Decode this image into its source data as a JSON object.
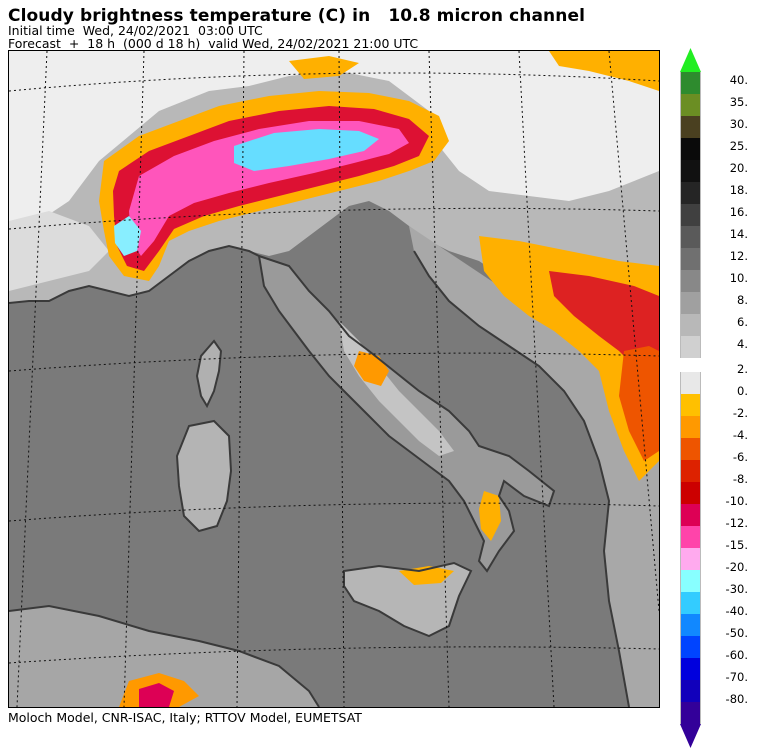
{
  "header": {
    "title": "Cloudy brightness temperature (C) in   10.8 micron channel",
    "line1": "Initial time  Wed, 24/02/2021  03:00 UTC",
    "line2": "Forecast  +  18 h  (000 d 18 h)  valid Wed, 24/02/2021 21:00 UTC"
  },
  "footer": {
    "credit": "Moloch Model, CNR-ISAC, Italy; RTTOV Model, EUMETSAT"
  },
  "legend": {
    "arrow_top_color": "#22ee22",
    "arrow_bottom_color": "#330099",
    "upper_scale": [
      {
        "label": "40.",
        "color": "#2e8b2e"
      },
      {
        "label": "35.",
        "color": "#6b8e23"
      },
      {
        "label": "30.",
        "color": "#4a4020"
      },
      {
        "label": "25.",
        "color": "#0a0a0a"
      },
      {
        "label": "20.",
        "color": "#111111"
      },
      {
        "label": "18.",
        "color": "#252525"
      },
      {
        "label": "16.",
        "color": "#404040"
      },
      {
        "label": "14.",
        "color": "#5a5a5a"
      },
      {
        "label": "12.",
        "color": "#707070"
      },
      {
        "label": "10.",
        "color": "#888888"
      },
      {
        "label": "8.",
        "color": "#a0a0a0"
      },
      {
        "label": "6.",
        "color": "#b8b8b8"
      },
      {
        "label": "4.",
        "color": "#d0d0d0"
      }
    ],
    "lower_scale": [
      {
        "label": "2.",
        "color": "#e8e8e8"
      },
      {
        "label": "0.",
        "color": "#ffc000"
      },
      {
        "label": "-2.",
        "color": "#ff9900"
      },
      {
        "label": "-4.",
        "color": "#ee5500"
      },
      {
        "label": "-6.",
        "color": "#dd2200"
      },
      {
        "label": "-8.",
        "color": "#cc0000"
      },
      {
        "label": "-10.",
        "color": "#dd0055"
      },
      {
        "label": "-12.",
        "color": "#ff44aa"
      },
      {
        "label": "-15.",
        "color": "#ffaaee"
      },
      {
        "label": "-20.",
        "color": "#88ffff"
      },
      {
        "label": "-30.",
        "color": "#33ccff"
      },
      {
        "label": "-40.",
        "color": "#1188ff"
      },
      {
        "label": "-50.",
        "color": "#0044ff"
      },
      {
        "label": "-60.",
        "color": "#0000dd"
      },
      {
        "label": "-70.",
        "color": "#1100bb"
      },
      {
        "label": "-80.",
        "color": "#330099"
      }
    ]
  },
  "colors": {
    "sea": "#7c7c7c",
    "land": "#a2a2a2",
    "cloud_light": "#d4d4d4",
    "cloud_white": "#f0f0f0",
    "coast": "#3e3e3e",
    "grid": "#111111"
  }
}
